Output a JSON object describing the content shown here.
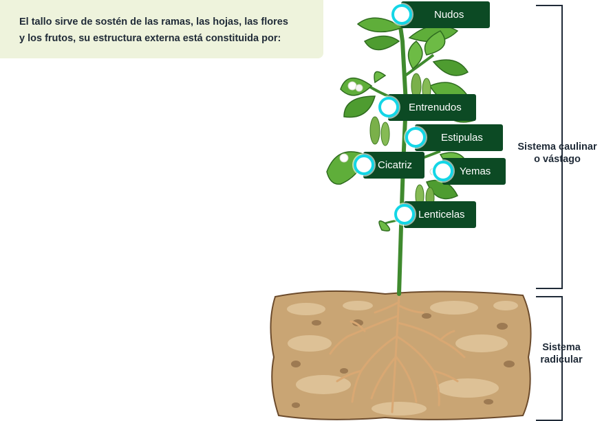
{
  "intro": {
    "line1": "El tallo sirve de sostén de las ramas, las hojas, las flores",
    "line2": "y los frutos, su estructura externa está constituida por:"
  },
  "hotspots": {
    "nudos": "Nudos",
    "entrenudos": "Entrenudos",
    "estipulas": "Estipulas",
    "cicatriz": "Cicatriz",
    "yemas": "Yemas",
    "lenticelas": "Lenticelas"
  },
  "brackets": {
    "caulinar_line1": "Sistema caulinar",
    "caulinar_line2": "o vástago",
    "radicular_line1": "Sistema",
    "radicular_line2": "radicular"
  },
  "colors": {
    "label_bg": "#0c4a24",
    "dot_ring": "#14d6e6",
    "intro_bg": "#eef3dc",
    "leaf": "#5fae3a",
    "soil": "#c9a574",
    "root": "#d9a873"
  }
}
